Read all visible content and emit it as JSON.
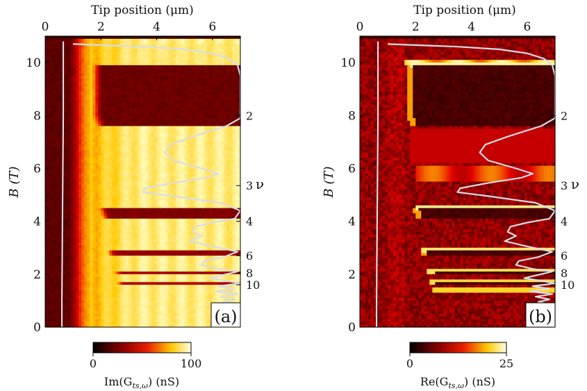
{
  "chart_data": [
    {
      "type": "heatmap",
      "panel_label": "(a)",
      "top_xlabel": "Tip position (μm)",
      "top_xticks": [
        0,
        2,
        4,
        6
      ],
      "xlim": [
        0,
        7
      ],
      "ylabel": "B (T)",
      "yticks": [
        0,
        2,
        4,
        6,
        8,
        10
      ],
      "ylim": [
        0,
        11
      ],
      "right_label": "ν",
      "filling_factors": [
        {
          "label": "2",
          "B": 8.0
        },
        {
          "label": "3",
          "B": 5.35
        },
        {
          "label": "4",
          "B": 4.0
        },
        {
          "label": "6",
          "B": 2.7
        },
        {
          "label": "8",
          "B": 2.05
        },
        {
          "label": "10",
          "B": 1.6
        }
      ],
      "colorbar": {
        "label": "Im(G_ts,ω) (nS)",
        "label_main": "Im(G",
        "label_sub": "ts,ω",
        "label_tail": ") (nS)",
        "min": 0,
        "max": 100,
        "ticks": [
          0,
          100
        ]
      },
      "plateaus": [
        {
          "B_low": 7.6,
          "B_high": 9.9,
          "edge_x": 1.8,
          "strength": 1.0
        },
        {
          "B_low": 4.05,
          "B_high": 4.5,
          "edge_x": 2.0,
          "strength": 0.9
        },
        {
          "B_low": 2.7,
          "B_high": 2.9,
          "edge_x": 2.2,
          "strength": 0.8
        },
        {
          "B_low": 2.05,
          "B_high": 2.15,
          "edge_x": 2.4,
          "strength": 0.7
        },
        {
          "B_low": 1.6,
          "B_high": 1.7,
          "edge_x": 2.5,
          "strength": 0.6
        },
        {
          "B_low": 1.35,
          "B_high": 1.42,
          "edge_x": 2.6,
          "strength": 0.5
        }
      ],
      "trace_profile": [
        [
          10.7,
          1.0
        ],
        [
          10.6,
          3.5
        ],
        [
          10.5,
          5.0
        ],
        [
          10.35,
          6.0
        ],
        [
          10.15,
          6.6
        ],
        [
          9.9,
          6.9
        ],
        [
          9.5,
          7.0
        ],
        [
          8.6,
          7.0
        ],
        [
          7.9,
          7.0
        ],
        [
          7.6,
          6.5
        ],
        [
          7.2,
          5.3
        ],
        [
          6.9,
          4.5
        ],
        [
          6.6,
          4.3
        ],
        [
          6.3,
          4.6
        ],
        [
          6.0,
          5.6
        ],
        [
          5.8,
          6.2
        ],
        [
          5.65,
          5.8
        ],
        [
          5.45,
          4.6
        ],
        [
          5.25,
          3.6
        ],
        [
          5.1,
          3.5
        ],
        [
          4.95,
          4.6
        ],
        [
          4.7,
          6.3
        ],
        [
          4.4,
          7.0
        ],
        [
          4.1,
          6.8
        ],
        [
          3.95,
          6.0
        ],
        [
          3.8,
          5.4
        ],
        [
          3.6,
          5.3
        ],
        [
          3.45,
          5.6
        ],
        [
          3.25,
          5.2
        ],
        [
          3.05,
          6.0
        ],
        [
          2.85,
          6.9
        ],
        [
          2.65,
          6.4
        ],
        [
          2.5,
          5.7
        ],
        [
          2.35,
          5.6
        ],
        [
          2.2,
          6.2
        ],
        [
          2.1,
          6.9
        ],
        [
          1.95,
          6.3
        ],
        [
          1.85,
          5.9
        ],
        [
          1.75,
          6.5
        ],
        [
          1.65,
          7.0
        ],
        [
          1.55,
          6.2
        ],
        [
          1.45,
          6.8
        ],
        [
          1.35,
          6.1
        ],
        [
          1.25,
          6.9
        ],
        [
          1.15,
          6.3
        ],
        [
          1.05,
          6.8
        ],
        [
          0.95,
          6.4
        ],
        [
          0.85,
          6.9
        ]
      ],
      "left_line_x": [
        [
          0,
          0.6
        ],
        [
          1,
          0.6
        ],
        [
          4,
          0.62
        ],
        [
          8,
          0.65
        ],
        [
          10.8,
          0.65
        ]
      ]
    },
    {
      "type": "heatmap",
      "panel_label": "(b)",
      "top_xlabel": "Tip position (μm)",
      "top_xticks": [
        0,
        2,
        4,
        6
      ],
      "xlim": [
        0,
        7
      ],
      "ylabel": "B (T)",
      "yticks": [
        0,
        2,
        4,
        6,
        8,
        10
      ],
      "ylim": [
        0,
        11
      ],
      "right_label": "ν",
      "filling_factors": [
        {
          "label": "2",
          "B": 8.0
        },
        {
          "label": "3",
          "B": 5.35
        },
        {
          "label": "4",
          "B": 4.0
        },
        {
          "label": "6",
          "B": 2.7
        },
        {
          "label": "8",
          "B": 2.05
        },
        {
          "label": "10",
          "B": 1.6
        }
      ],
      "colorbar": {
        "label": "Re(G_ts,ω) (nS)",
        "label_main": "Re(G",
        "label_sub": "ts,ω",
        "label_tail": ") (nS)",
        "min": 0,
        "max": 25,
        "ticks": [
          0,
          25
        ]
      },
      "plateaus": [
        {
          "B_low": 7.6,
          "B_high": 9.9,
          "edge_x": 1.8,
          "strength": 1.0
        },
        {
          "B_low": 4.05,
          "B_high": 4.5,
          "edge_x": 2.0,
          "strength": 0.9
        },
        {
          "B_low": 2.7,
          "B_high": 2.9,
          "edge_x": 2.2,
          "strength": 0.8
        },
        {
          "B_low": 2.05,
          "B_high": 2.15,
          "edge_x": 2.4,
          "strength": 0.7
        },
        {
          "B_low": 1.6,
          "B_high": 1.7,
          "edge_x": 2.5,
          "strength": 0.6
        },
        {
          "B_low": 1.35,
          "B_high": 1.42,
          "edge_x": 2.6,
          "strength": 0.5
        }
      ],
      "trace_profile": [
        [
          10.7,
          1.0
        ],
        [
          10.6,
          3.5
        ],
        [
          10.5,
          5.0
        ],
        [
          10.35,
          6.0
        ],
        [
          10.15,
          6.6
        ],
        [
          9.9,
          6.9
        ],
        [
          9.5,
          7.0
        ],
        [
          8.6,
          7.0
        ],
        [
          7.9,
          7.0
        ],
        [
          7.6,
          6.5
        ],
        [
          7.2,
          5.3
        ],
        [
          6.9,
          4.5
        ],
        [
          6.6,
          4.3
        ],
        [
          6.3,
          4.6
        ],
        [
          6.0,
          5.6
        ],
        [
          5.8,
          6.2
        ],
        [
          5.65,
          5.8
        ],
        [
          5.45,
          4.6
        ],
        [
          5.25,
          3.6
        ],
        [
          5.1,
          3.5
        ],
        [
          4.95,
          4.6
        ],
        [
          4.7,
          6.3
        ],
        [
          4.4,
          7.0
        ],
        [
          4.1,
          6.8
        ],
        [
          3.95,
          6.0
        ],
        [
          3.8,
          5.4
        ],
        [
          3.6,
          5.3
        ],
        [
          3.45,
          5.6
        ],
        [
          3.25,
          5.2
        ],
        [
          3.05,
          6.0
        ],
        [
          2.85,
          6.9
        ],
        [
          2.65,
          6.4
        ],
        [
          2.5,
          5.7
        ],
        [
          2.35,
          5.6
        ],
        [
          2.2,
          6.2
        ],
        [
          2.1,
          6.9
        ],
        [
          1.95,
          6.3
        ],
        [
          1.85,
          5.9
        ],
        [
          1.75,
          6.5
        ],
        [
          1.65,
          7.0
        ],
        [
          1.55,
          6.2
        ],
        [
          1.45,
          6.8
        ],
        [
          1.35,
          6.1
        ],
        [
          1.25,
          6.9
        ],
        [
          1.15,
          6.3
        ],
        [
          1.05,
          6.8
        ],
        [
          0.95,
          6.4
        ],
        [
          0.85,
          6.9
        ]
      ],
      "left_line_x": [
        [
          0,
          0.6
        ],
        [
          1,
          0.6
        ],
        [
          4,
          0.62
        ],
        [
          8,
          0.65
        ],
        [
          10.8,
          0.65
        ]
      ]
    }
  ]
}
